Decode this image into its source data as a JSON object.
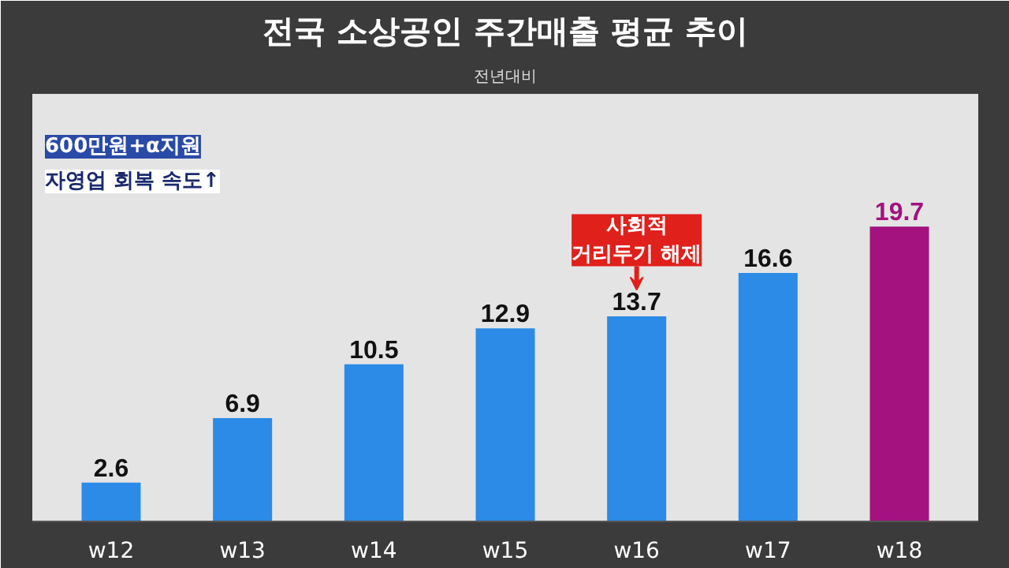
{
  "chart_data": {
    "type": "bar",
    "title": "전국 소상공인 주간매출 평균 추이",
    "subtitle": "전년대비",
    "categories": [
      "w12",
      "w13",
      "w14",
      "w15",
      "w16",
      "w17",
      "w18"
    ],
    "values": [
      2.6,
      6.9,
      10.5,
      12.9,
      13.7,
      16.6,
      19.7
    ],
    "colors": [
      "#2b8be6",
      "#2b8be6",
      "#2b8be6",
      "#2b8be6",
      "#2b8be6",
      "#2b8be6",
      "#a3127f"
    ],
    "data_labels": true,
    "annotations": [
      "600만원+α지원",
      "자영업 회복 속도↑",
      {
        "text": "사회적\n거리두기 해제",
        "x": "w16",
        "y": 13.7
      }
    ]
  }
}
